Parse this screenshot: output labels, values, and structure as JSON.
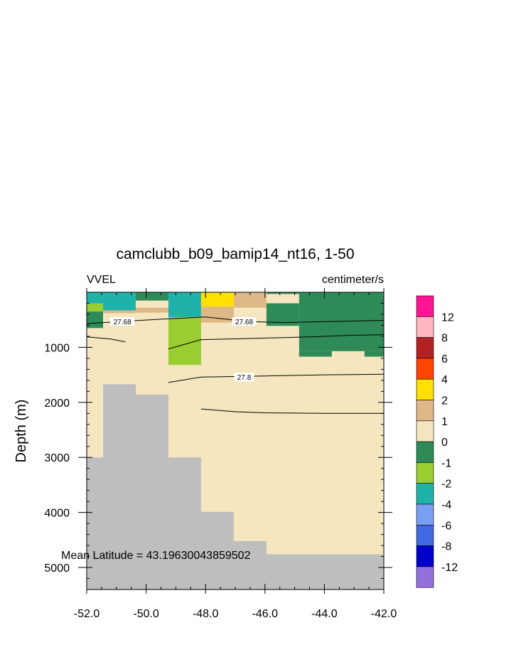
{
  "chart_data": {
    "type": "heatmap",
    "title": "camclubb_b09_bamip14_nt16, 1-50",
    "left_string": "VVEL",
    "right_string": "centimeter/s",
    "xlabel": "",
    "ylabel": "Depth (m)",
    "xlim": [
      -52.0,
      -42.0
    ],
    "ylim": [
      5400,
      0
    ],
    "y_reversed": true,
    "x_tick_labels": [
      "-52.0",
      "-50.0",
      "-48.0",
      "-46.0",
      "-44.0",
      "-42.0"
    ],
    "x_ticks": [
      -52,
      -50,
      -48,
      -46,
      -44,
      -42
    ],
    "y_tick_labels": [
      "1000",
      "2000",
      "3000",
      "4000",
      "5000"
    ],
    "y_ticks": [
      1000,
      2000,
      3000,
      4000,
      5000
    ],
    "annotation": "Mean Latitude = 43.19630043859502",
    "land_color": "#bebebe",
    "colorbar": {
      "labels": [
        "12",
        "8",
        "6",
        "4",
        "2",
        "1",
        "0",
        "-1",
        "-2",
        "-4",
        "-6",
        "-8",
        "-12"
      ],
      "colors": [
        "#ff1493",
        "#ffb6c1",
        "#b22222",
        "#ff4500",
        "#ffe000",
        "#deb887",
        "#f5e6c0",
        "#2e8b57",
        "#9acd32",
        "#20b2aa",
        "#7b9ff0",
        "#4169e1",
        "#0000cd",
        "#9370db"
      ]
    },
    "cells": [
      {
        "x": [
          -52.0,
          -51.45
        ],
        "y": [
          0,
          200
        ],
        "v": -3,
        "color": "#20b2aa"
      },
      {
        "x": [
          -51.45,
          -50.35
        ],
        "y": [
          0,
          330
        ],
        "v": -3,
        "color": "#20b2aa"
      },
      {
        "x": [
          -50.35,
          -49.25
        ],
        "y": [
          0,
          150
        ],
        "v": -0.5,
        "color": "#2e8b57"
      },
      {
        "x": [
          -49.25,
          -48.15
        ],
        "y": [
          0,
          450
        ],
        "v": -3,
        "color": "#20b2aa"
      },
      {
        "x": [
          -48.15,
          -47.05
        ],
        "y": [
          0,
          260
        ],
        "v": 3,
        "color": "#ffe000"
      },
      {
        "x": [
          -47.05,
          -45.95
        ],
        "y": [
          0,
          280
        ],
        "v": 1.5,
        "color": "#deb887"
      },
      {
        "x": [
          -48.15,
          -47.05
        ],
        "y": [
          260,
          550
        ],
        "v": 1.5,
        "color": "#deb887"
      },
      {
        "x": [
          -50.35,
          -49.25
        ],
        "y": [
          280,
          370
        ],
        "v": 1.5,
        "color": "#deb887"
      },
      {
        "x": [
          -51.45,
          -50.35
        ],
        "y": [
          330,
          380
        ],
        "v": 1.5,
        "color": "#deb887"
      },
      {
        "x": [
          -52.0,
          -51.45
        ],
        "y": [
          200,
          350
        ],
        "v": -1.5,
        "color": "#9acd32"
      },
      {
        "x": [
          -52.0,
          -51.45
        ],
        "y": [
          350,
          650
        ],
        "v": -0.5,
        "color": "#2e8b57"
      },
      {
        "x": [
          -49.25,
          -48.15
        ],
        "y": [
          450,
          1320
        ],
        "v": -1.5,
        "color": "#9acd32"
      },
      {
        "x": [
          -45.95,
          -44.85
        ],
        "y": [
          0,
          30
        ],
        "v": -0.5,
        "color": "#2e8b57"
      },
      {
        "x": [
          -45.95,
          -44.85
        ],
        "y": [
          200,
          610
        ],
        "v": -0.5,
        "color": "#2e8b57"
      },
      {
        "x": [
          -44.85,
          -42.0
        ],
        "y": [
          0,
          1070
        ],
        "v": -0.5,
        "color": "#2e8b57"
      },
      {
        "x": [
          -44.85,
          -43.75
        ],
        "y": [
          1070,
          1170
        ],
        "v": -0.5,
        "color": "#2e8b57"
      },
      {
        "x": [
          -42.65,
          -42.0
        ],
        "y": [
          1070,
          1170
        ],
        "v": -0.5,
        "color": "#2e8b57"
      }
    ],
    "bathymetry": [
      {
        "x": [
          -52.0,
          -51.45
        ],
        "depth": 3000
      },
      {
        "x": [
          -51.45,
          -50.35
        ],
        "depth": 1670
      },
      {
        "x": [
          -50.35,
          -49.25
        ],
        "depth": 1860
      },
      {
        "x": [
          -49.25,
          -48.15
        ],
        "depth": 3000
      },
      {
        "x": [
          -48.15,
          -47.05
        ],
        "depth": 3990
      },
      {
        "x": [
          -47.05,
          -45.95
        ],
        "depth": 4520
      },
      {
        "x": [
          -45.95,
          -42.0
        ],
        "depth": 4760
      }
    ],
    "contours": [
      {
        "label": "27.68",
        "label_at": [
          -50.8,
          530
        ],
        "points": [
          [
            -52.0,
            570
          ],
          [
            -50.5,
            520
          ],
          [
            -49.5,
            490
          ],
          [
            -48.0,
            450
          ],
          [
            -46.6,
            530
          ],
          [
            -45.4,
            550
          ],
          [
            -42.0,
            510
          ]
        ]
      },
      {
        "label": "27.68",
        "label_at": [
          -46.7,
          530
        ],
        "points": []
      },
      {
        "label": "",
        "label_at": null,
        "points": [
          [
            -52.0,
            810
          ],
          [
            -51.2,
            850
          ],
          [
            -50.7,
            900
          ]
        ]
      },
      {
        "label": "",
        "label_at": null,
        "points": [
          [
            -49.25,
            1030
          ],
          [
            -48.15,
            860
          ],
          [
            -46.5,
            840
          ],
          [
            -44.5,
            810
          ],
          [
            -43.0,
            780
          ],
          [
            -42.0,
            770
          ]
        ]
      },
      {
        "label": "27.8",
        "label_at": [
          -46.7,
          1540
        ],
        "points": [
          [
            -49.25,
            1640
          ],
          [
            -48.15,
            1540
          ],
          [
            -46.0,
            1520
          ],
          [
            -44.0,
            1500
          ],
          [
            -42.0,
            1490
          ]
        ]
      },
      {
        "label": "",
        "label_at": null,
        "points": [
          [
            -48.15,
            2120
          ],
          [
            -47.0,
            2170
          ],
          [
            -46.0,
            2190
          ],
          [
            -44.0,
            2200
          ],
          [
            -42.0,
            2200
          ]
        ]
      }
    ]
  }
}
